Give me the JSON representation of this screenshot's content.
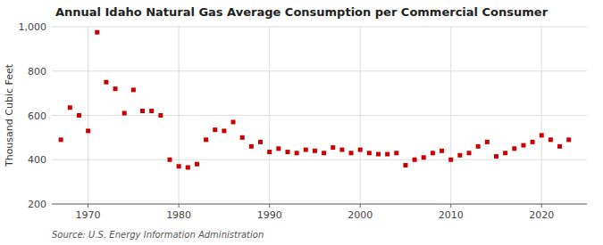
{
  "chart_data": {
    "type": "scatter",
    "title": "Annual Idaho Natural Gas Average Consumption per Commercial Consumer",
    "y_label": "Thousand Cubic Feet",
    "annotations": [
      "Source: U.S. Energy Information Administration"
    ],
    "x": [
      1967,
      1968,
      1969,
      1970,
      1971,
      1972,
      1973,
      1974,
      1975,
      1976,
      1977,
      1978,
      1979,
      1980,
      1981,
      1982,
      1983,
      1984,
      1985,
      1986,
      1987,
      1988,
      1989,
      1990,
      1991,
      1992,
      1993,
      1994,
      1995,
      1996,
      1997,
      1998,
      1999,
      2000,
      2001,
      2002,
      2003,
      2004,
      2005,
      2006,
      2007,
      2008,
      2009,
      2010,
      2011,
      2012,
      2013,
      2014,
      2015,
      2016,
      2017,
      2018,
      2019,
      2020,
      2021,
      2022,
      2023
    ],
    "values": [
      490,
      635,
      600,
      530,
      975,
      750,
      720,
      610,
      715,
      620,
      620,
      600,
      400,
      370,
      365,
      380,
      490,
      535,
      530,
      570,
      500,
      460,
      480,
      435,
      450,
      435,
      430,
      445,
      440,
      430,
      455,
      445,
      430,
      445,
      430,
      425,
      425,
      430,
      375,
      400,
      410,
      430,
      440,
      400,
      420,
      430,
      460,
      480,
      415,
      430,
      450,
      465,
      480,
      510,
      490,
      460,
      490
    ],
    "color": "#cc0000",
    "marker": "square",
    "xlim": [
      1966,
      2025
    ],
    "xticks": [
      1970,
      1980,
      1990,
      2000,
      2010,
      2020
    ],
    "ylim": [
      200,
      1000
    ],
    "yticks": [
      200,
      400,
      600,
      800,
      {
        "value": 1000,
        "label": "1,000"
      }
    ],
    "grid": true
  }
}
